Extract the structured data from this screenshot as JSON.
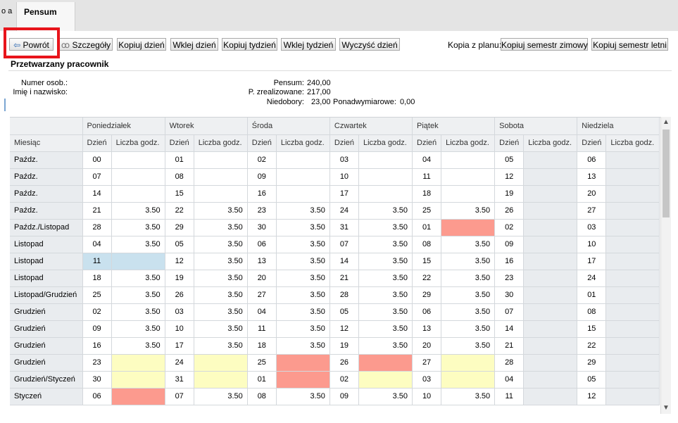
{
  "window": {
    "side_tab_label": "o a",
    "active_tab": "Pensum"
  },
  "toolbar": {
    "buttons": [
      {
        "label": "Powrót",
        "icon": "back-arrow-icon"
      },
      {
        "label": "Szczegóły",
        "icon": "glasses-icon"
      },
      {
        "label": "Kopiuj dzień"
      },
      {
        "label": "Wklej dzień"
      },
      {
        "label": "Kopiuj tydzień"
      },
      {
        "label": "Wklej tydzień"
      },
      {
        "label": "Wyczyść dzień"
      }
    ],
    "copy_from_plan_label": "Kopia z planu:",
    "copy_winter": "Kopiuj semestr zimowy",
    "copy_summer": "Kopiuj semestr letni"
  },
  "employee": {
    "section_title": "Przetwarzany pracownik",
    "id_label": "Numer osob.:",
    "id_value": "",
    "name_label": "Imię i nazwisko:",
    "name_value": "",
    "pensum_label": "Pensum:",
    "pensum_value": "240,00",
    "realized_label": "P. zrealizowane:",
    "realized_value": "217,00",
    "shortfall_label": "Niedobory:",
    "shortfall_value": "23,00",
    "overtime_label": "Ponadwymiarowe:",
    "overtime_value": "0,00"
  },
  "table": {
    "month_header": "Miesiąc",
    "day_header": "Dzień",
    "hours_header": "Liczba godz.",
    "weekdays": [
      "Poniedziałek",
      "Wtorek",
      "Środa",
      "Czwartek",
      "Piątek",
      "Sobota",
      "Niedziela"
    ],
    "rows": [
      {
        "month": "Paźdz.",
        "cells": [
          [
            "00",
            "",
            ""
          ],
          [
            "01",
            "",
            ""
          ],
          [
            "02",
            "",
            ""
          ],
          [
            "03",
            "",
            ""
          ],
          [
            "04",
            "",
            ""
          ],
          [
            "05",
            "",
            "ro"
          ],
          [
            "06",
            "",
            "ro"
          ]
        ]
      },
      {
        "month": "Paźdz.",
        "cells": [
          [
            "07",
            "",
            ""
          ],
          [
            "08",
            "",
            ""
          ],
          [
            "09",
            "",
            ""
          ],
          [
            "10",
            "",
            ""
          ],
          [
            "11",
            "",
            ""
          ],
          [
            "12",
            "",
            "ro"
          ],
          [
            "13",
            "",
            "ro"
          ]
        ]
      },
      {
        "month": "Paźdz.",
        "cells": [
          [
            "14",
            "",
            ""
          ],
          [
            "15",
            "",
            ""
          ],
          [
            "16",
            "",
            ""
          ],
          [
            "17",
            "",
            ""
          ],
          [
            "18",
            "",
            ""
          ],
          [
            "19",
            "",
            "ro"
          ],
          [
            "20",
            "",
            "ro"
          ]
        ]
      },
      {
        "month": "Paźdz.",
        "cells": [
          [
            "21",
            "3.50",
            ""
          ],
          [
            "22",
            "3.50",
            ""
          ],
          [
            "23",
            "3.50",
            ""
          ],
          [
            "24",
            "3.50",
            ""
          ],
          [
            "25",
            "3.50",
            ""
          ],
          [
            "26",
            "",
            "ro"
          ],
          [
            "27",
            "",
            "ro"
          ]
        ]
      },
      {
        "month": "Paźdz./Listopad",
        "cells": [
          [
            "28",
            "3.50",
            ""
          ],
          [
            "29",
            "3.50",
            ""
          ],
          [
            "30",
            "3.50",
            ""
          ],
          [
            "31",
            "3.50",
            ""
          ],
          [
            "01",
            "",
            "pink"
          ],
          [
            "02",
            "",
            "ro"
          ],
          [
            "03",
            "",
            "ro"
          ]
        ]
      },
      {
        "month": "Listopad",
        "cells": [
          [
            "04",
            "3.50",
            ""
          ],
          [
            "05",
            "3.50",
            ""
          ],
          [
            "06",
            "3.50",
            ""
          ],
          [
            "07",
            "3.50",
            ""
          ],
          [
            "08",
            "3.50",
            ""
          ],
          [
            "09",
            "",
            "ro"
          ],
          [
            "10",
            "",
            "ro"
          ]
        ]
      },
      {
        "month": "Listopad",
        "cells": [
          [
            "11",
            "",
            "blue"
          ],
          [
            "12",
            "3.50",
            ""
          ],
          [
            "13",
            "3.50",
            ""
          ],
          [
            "14",
            "3.50",
            ""
          ],
          [
            "15",
            "3.50",
            ""
          ],
          [
            "16",
            "",
            "ro"
          ],
          [
            "17",
            "",
            "ro"
          ]
        ]
      },
      {
        "month": "Listopad",
        "cells": [
          [
            "18",
            "3.50",
            ""
          ],
          [
            "19",
            "3.50",
            ""
          ],
          [
            "20",
            "3.50",
            ""
          ],
          [
            "21",
            "3.50",
            ""
          ],
          [
            "22",
            "3.50",
            ""
          ],
          [
            "23",
            "",
            "ro"
          ],
          [
            "24",
            "",
            "ro"
          ]
        ]
      },
      {
        "month": "Listopad/Grudzień",
        "cells": [
          [
            "25",
            "3.50",
            ""
          ],
          [
            "26",
            "3.50",
            ""
          ],
          [
            "27",
            "3.50",
            ""
          ],
          [
            "28",
            "3.50",
            ""
          ],
          [
            "29",
            "3.50",
            ""
          ],
          [
            "30",
            "",
            "ro"
          ],
          [
            "01",
            "",
            "ro"
          ]
        ]
      },
      {
        "month": "Grudzień",
        "cells": [
          [
            "02",
            "3.50",
            ""
          ],
          [
            "03",
            "3.50",
            ""
          ],
          [
            "04",
            "3.50",
            ""
          ],
          [
            "05",
            "3.50",
            ""
          ],
          [
            "06",
            "3.50",
            ""
          ],
          [
            "07",
            "",
            "ro"
          ],
          [
            "08",
            "",
            "ro"
          ]
        ]
      },
      {
        "month": "Grudzień",
        "cells": [
          [
            "09",
            "3.50",
            ""
          ],
          [
            "10",
            "3.50",
            ""
          ],
          [
            "11",
            "3.50",
            ""
          ],
          [
            "12",
            "3.50",
            ""
          ],
          [
            "13",
            "3.50",
            ""
          ],
          [
            "14",
            "",
            "ro"
          ],
          [
            "15",
            "",
            "ro"
          ]
        ]
      },
      {
        "month": "Grudzień",
        "cells": [
          [
            "16",
            "3.50",
            ""
          ],
          [
            "17",
            "3.50",
            ""
          ],
          [
            "18",
            "3.50",
            ""
          ],
          [
            "19",
            "3.50",
            ""
          ],
          [
            "20",
            "3.50",
            ""
          ],
          [
            "21",
            "",
            "ro"
          ],
          [
            "22",
            "",
            "ro"
          ]
        ]
      },
      {
        "month": "Grudzień",
        "cells": [
          [
            "23",
            "",
            "yellow"
          ],
          [
            "24",
            "",
            "yellow"
          ],
          [
            "25",
            "",
            "pink"
          ],
          [
            "26",
            "",
            "pink"
          ],
          [
            "27",
            "",
            "yellow"
          ],
          [
            "28",
            "",
            "ro"
          ],
          [
            "29",
            "",
            "ro"
          ]
        ]
      },
      {
        "month": "Grudzień/Styczeń",
        "cells": [
          [
            "30",
            "",
            "yellow"
          ],
          [
            "31",
            "",
            "yellow"
          ],
          [
            "01",
            "",
            "pink"
          ],
          [
            "02",
            "",
            "yellow"
          ],
          [
            "03",
            "",
            "yellow"
          ],
          [
            "04",
            "",
            "ro"
          ],
          [
            "05",
            "",
            "ro"
          ]
        ]
      },
      {
        "month": "Styczeń",
        "cells": [
          [
            "06",
            "",
            "pink"
          ],
          [
            "07",
            "3.50",
            ""
          ],
          [
            "08",
            "3.50",
            ""
          ],
          [
            "09",
            "3.50",
            ""
          ],
          [
            "10",
            "3.50",
            ""
          ],
          [
            "11",
            "",
            "ro"
          ],
          [
            "12",
            "",
            "ro"
          ]
        ]
      }
    ]
  },
  "colors": {
    "holiday": "#fc9a8e",
    "free_day": "#fdfdc1",
    "selected": "#c9e1ee",
    "highlight_frame": "#e8141b"
  }
}
